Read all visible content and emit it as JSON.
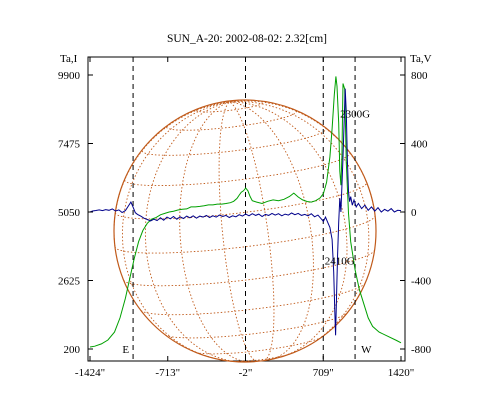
{
  "chart_data": {
    "type": "line",
    "title": "SUN_A-20: 2002-08-02: 2.32[cm]",
    "y_left_label": "Ta,I",
    "y_right_label": "Ta,V",
    "xlim": [
      -1424,
      1420
    ],
    "ylim_left": [
      200,
      9900
    ],
    "ylim_right": [
      -800,
      800
    ],
    "x_ticks": [
      {
        "value": -1424,
        "label": "-1424\""
      },
      {
        "value": -713,
        "label": "-713\""
      },
      {
        "value": -2,
        "label": "-2\""
      },
      {
        "value": 709,
        "label": "709\""
      },
      {
        "value": 1420,
        "label": "1420\""
      }
    ],
    "y_left_ticks": [
      {
        "value": 9900,
        "label": "9900"
      },
      {
        "value": 7475,
        "label": "7475"
      },
      {
        "value": 5050,
        "label": "5050"
      },
      {
        "value": 2625,
        "label": "2625"
      },
      {
        "value": 200,
        "label": "200"
      }
    ],
    "y_right_ticks": [
      {
        "value": 800,
        "label": "800"
      },
      {
        "value": 400,
        "label": "400"
      },
      {
        "value": 0,
        "label": "0"
      },
      {
        "value": -400,
        "label": "-400"
      },
      {
        "value": -800,
        "label": "-800"
      }
    ],
    "vlines": [
      {
        "x": -1030,
        "label": "E"
      },
      {
        "x": -2,
        "label": ""
      },
      {
        "x": 709,
        "label": ""
      },
      {
        "x": 1000,
        "label": "W"
      }
    ],
    "annotations": [
      {
        "text": "2300G",
        "x": 1000,
        "y_left": 8400
      },
      {
        "text": "2410G",
        "x": 860,
        "y_left": 3200
      }
    ],
    "series": [
      {
        "color": "#00a000",
        "axis": "left",
        "points": [
          [
            -1424,
            270
          ],
          [
            -1380,
            300
          ],
          [
            -1320,
            380
          ],
          [
            -1260,
            520
          ],
          [
            -1200,
            800
          ],
          [
            -1150,
            1300
          ],
          [
            -1100,
            2000
          ],
          [
            -1060,
            2700
          ],
          [
            -1020,
            3400
          ],
          [
            -980,
            4000
          ],
          [
            -940,
            4400
          ],
          [
            -900,
            4650
          ],
          [
            -860,
            4800
          ],
          [
            -820,
            4850
          ],
          [
            -780,
            4950
          ],
          [
            -740,
            5000
          ],
          [
            -700,
            5050
          ],
          [
            -660,
            5080
          ],
          [
            -620,
            5120
          ],
          [
            -580,
            5150
          ],
          [
            -540,
            5160
          ],
          [
            -500,
            5230
          ],
          [
            -460,
            5230
          ],
          [
            -420,
            5250
          ],
          [
            -380,
            5270
          ],
          [
            -340,
            5300
          ],
          [
            -300,
            5300
          ],
          [
            -260,
            5330
          ],
          [
            -220,
            5330
          ],
          [
            -180,
            5350
          ],
          [
            -140,
            5380
          ],
          [
            -110,
            5430
          ],
          [
            -80,
            5530
          ],
          [
            -60,
            5650
          ],
          [
            -40,
            5750
          ],
          [
            -20,
            5800
          ],
          [
            0,
            5900
          ],
          [
            20,
            5800
          ],
          [
            40,
            5600
          ],
          [
            60,
            5450
          ],
          [
            100,
            5400
          ],
          [
            150,
            5350
          ],
          [
            200,
            5430
          ],
          [
            250,
            5480
          ],
          [
            300,
            5450
          ],
          [
            350,
            5500
          ],
          [
            400,
            5600
          ],
          [
            440,
            5720
          ],
          [
            480,
            5580
          ],
          [
            520,
            5480
          ],
          [
            560,
            5420
          ],
          [
            600,
            5400
          ],
          [
            640,
            5450
          ],
          [
            680,
            5550
          ],
          [
            710,
            5700
          ],
          [
            740,
            6100
          ],
          [
            770,
            7000
          ],
          [
            790,
            8000
          ],
          [
            810,
            9200
          ],
          [
            825,
            9850
          ],
          [
            835,
            9500
          ],
          [
            850,
            8200
          ],
          [
            860,
            6500
          ],
          [
            870,
            6000
          ],
          [
            880,
            7000
          ],
          [
            890,
            9600
          ],
          [
            905,
            9400
          ],
          [
            920,
            6800
          ],
          [
            940,
            5000
          ],
          [
            960,
            4000
          ],
          [
            980,
            3500
          ],
          [
            1000,
            3000
          ],
          [
            1040,
            2300
          ],
          [
            1080,
            1800
          ],
          [
            1120,
            1300
          ],
          [
            1160,
            1000
          ],
          [
            1220,
            800
          ],
          [
            1300,
            650
          ],
          [
            1380,
            500
          ],
          [
            1420,
            420
          ]
        ]
      },
      {
        "color": "#00008b",
        "axis": "right",
        "points": [
          [
            -1424,
            0
          ],
          [
            -1400,
            6
          ],
          [
            -1370,
            9
          ],
          [
            -1340,
            12
          ],
          [
            -1310,
            8
          ],
          [
            -1280,
            14
          ],
          [
            -1250,
            10
          ],
          [
            -1220,
            18
          ],
          [
            -1190,
            6
          ],
          [
            -1160,
            12
          ],
          [
            -1130,
            -3
          ],
          [
            -1100,
            8
          ],
          [
            -1070,
            38
          ],
          [
            -1050,
            58
          ],
          [
            -1030,
            28
          ],
          [
            -1010,
            -4
          ],
          [
            -990,
            -14
          ],
          [
            -960,
            -24
          ],
          [
            -930,
            -36
          ],
          [
            -900,
            -44
          ],
          [
            -870,
            -52
          ],
          [
            -840,
            -42
          ],
          [
            -810,
            -50
          ],
          [
            -780,
            -34
          ],
          [
            -750,
            -48
          ],
          [
            -720,
            -30
          ],
          [
            -690,
            -40
          ],
          [
            -660,
            -26
          ],
          [
            -630,
            -42
          ],
          [
            -600,
            -28
          ],
          [
            -570,
            -38
          ],
          [
            -540,
            -24
          ],
          [
            -510,
            -34
          ],
          [
            -480,
            -22
          ],
          [
            -450,
            -36
          ],
          [
            -420,
            -24
          ],
          [
            -390,
            -30
          ],
          [
            -360,
            -20
          ],
          [
            -330,
            -32
          ],
          [
            -300,
            -22
          ],
          [
            -270,
            -30
          ],
          [
            -240,
            -18
          ],
          [
            -210,
            -26
          ],
          [
            -180,
            -20
          ],
          [
            -150,
            -32
          ],
          [
            -120,
            -22
          ],
          [
            -90,
            -28
          ],
          [
            -60,
            -16
          ],
          [
            -30,
            -24
          ],
          [
            0,
            -12
          ],
          [
            30,
            -22
          ],
          [
            60,
            -10
          ],
          [
            90,
            -20
          ],
          [
            120,
            -12
          ],
          [
            150,
            -26
          ],
          [
            180,
            -14
          ],
          [
            210,
            -20
          ],
          [
            240,
            -8
          ],
          [
            270,
            -18
          ],
          [
            300,
            -10
          ],
          [
            330,
            -22
          ],
          [
            360,
            -12
          ],
          [
            390,
            -18
          ],
          [
            420,
            -6
          ],
          [
            450,
            -16
          ],
          [
            480,
            -8
          ],
          [
            510,
            -20
          ],
          [
            540,
            -14
          ],
          [
            570,
            -22
          ],
          [
            600,
            -10
          ],
          [
            630,
            -28
          ],
          [
            660,
            -18
          ],
          [
            690,
            -40
          ],
          [
            710,
            -55
          ],
          [
            730,
            -30
          ],
          [
            750,
            -60
          ],
          [
            770,
            -90
          ],
          [
            790,
            -160
          ],
          [
            805,
            -350
          ],
          [
            815,
            -580
          ],
          [
            822,
            -720
          ],
          [
            830,
            -500
          ],
          [
            840,
            -250
          ],
          [
            850,
            -60
          ],
          [
            860,
            80
          ],
          [
            870,
            0
          ],
          [
            880,
            150
          ],
          [
            890,
            320
          ],
          [
            900,
            520
          ],
          [
            910,
            720
          ],
          [
            920,
            580
          ],
          [
            930,
            300
          ],
          [
            940,
            120
          ],
          [
            950,
            60
          ],
          [
            960,
            90
          ],
          [
            975,
            40
          ],
          [
            990,
            70
          ],
          [
            1010,
            30
          ],
          [
            1030,
            50
          ],
          [
            1060,
            20
          ],
          [
            1090,
            40
          ],
          [
            1120,
            10
          ],
          [
            1150,
            30
          ],
          [
            1180,
            5
          ],
          [
            1210,
            25
          ],
          [
            1240,
            0
          ],
          [
            1270,
            15
          ],
          [
            1300,
            5
          ],
          [
            1330,
            20
          ],
          [
            1360,
            0
          ],
          [
            1390,
            10
          ],
          [
            1420,
            8
          ]
        ]
      }
    ],
    "solar_disk": {
      "color": "#c05a1a"
    }
  }
}
